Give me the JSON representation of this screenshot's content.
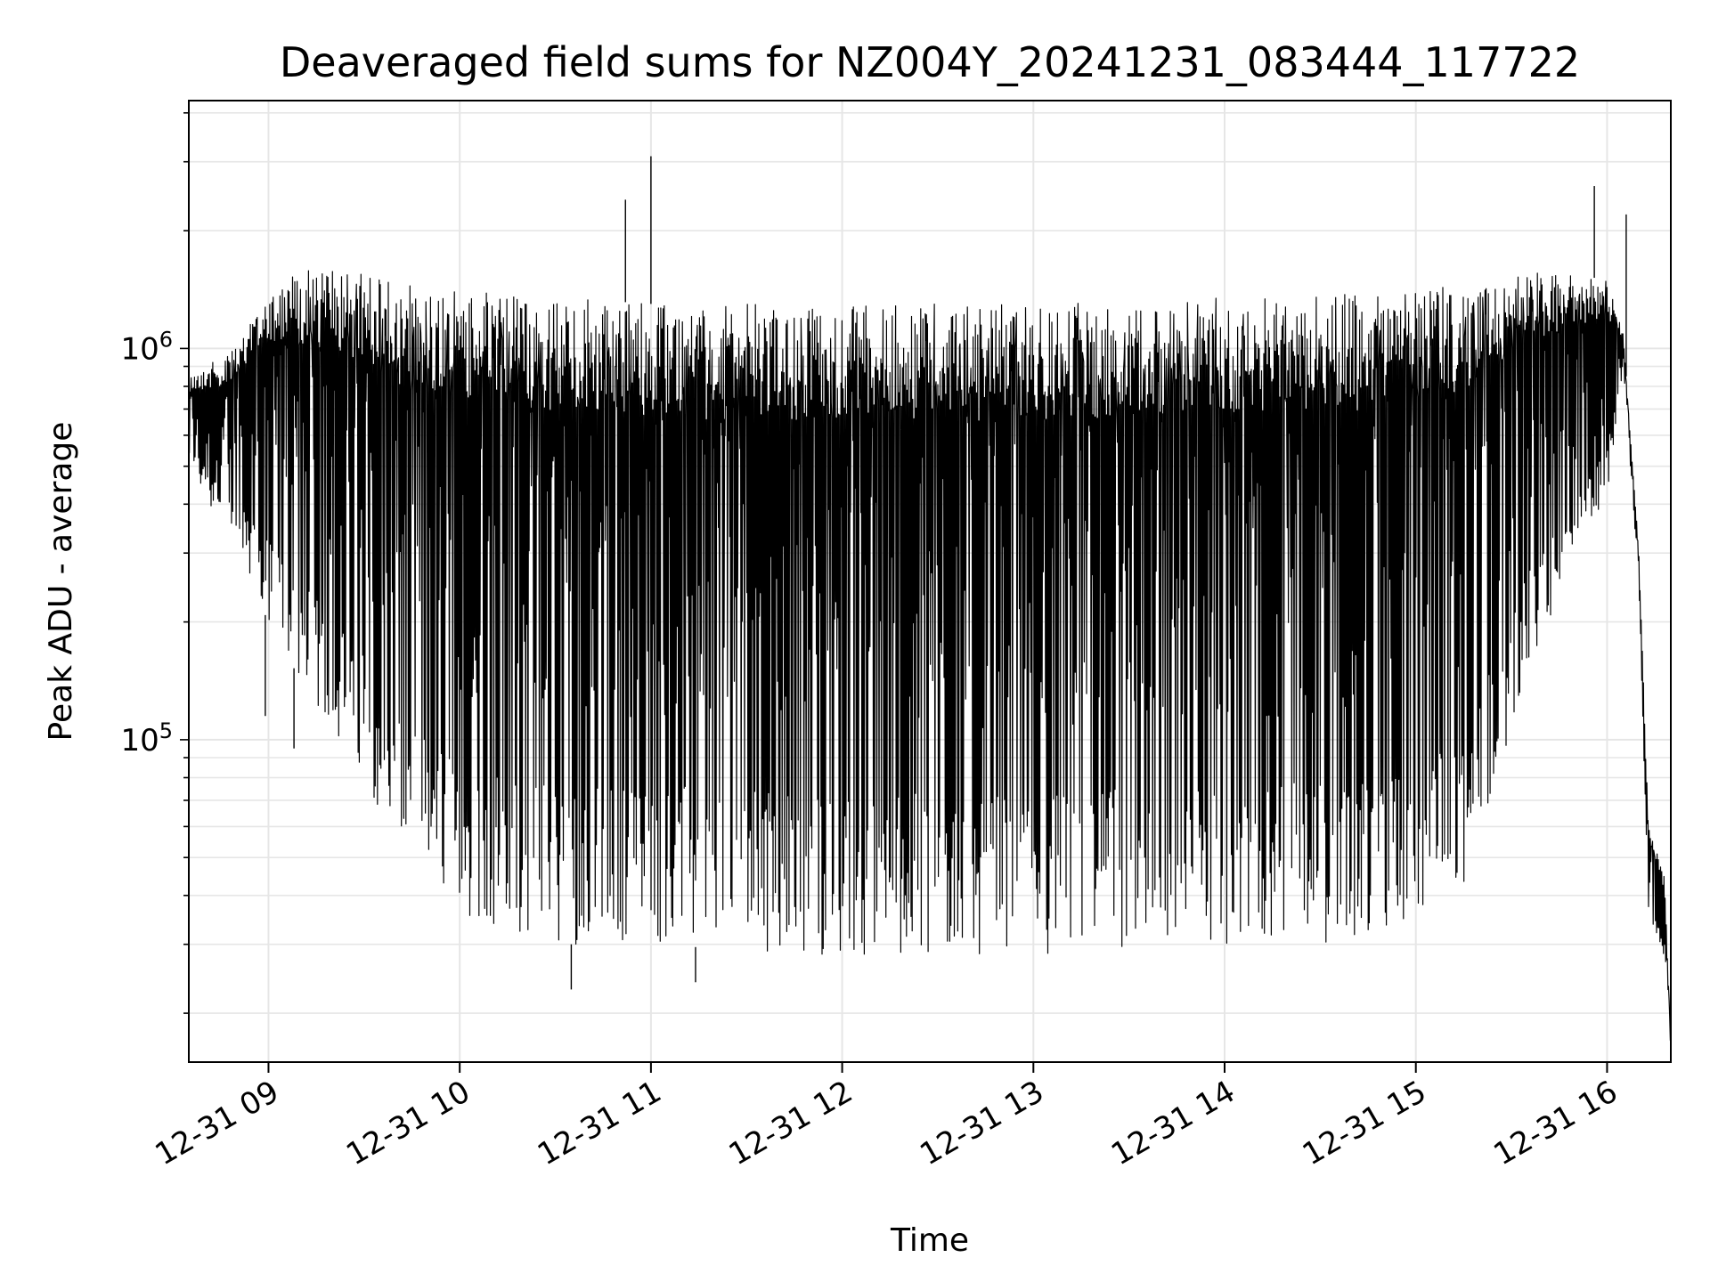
{
  "chart_data": {
    "type": "line",
    "title": "Deaveraged field sums for NZ004Y_20241231_083444_117722",
    "xlabel": "Time",
    "ylabel": "Peak ADU - average",
    "yscale": "log",
    "grid": true,
    "line_color": "#000000",
    "grid_color": "#e6e6e6",
    "xlim": [
      "2024-12-31T08:35:00",
      "2024-12-31T16:20:00"
    ],
    "ylim": [
      15000,
      4300000
    ],
    "x_tick_labels": [
      "12-31 09",
      "12-31 10",
      "12-31 11",
      "12-31 12",
      "12-31 13",
      "12-31 14",
      "12-31 15",
      "12-31 16"
    ],
    "x_ticks": [
      "2024-12-31T09:00:00",
      "2024-12-31T10:00:00",
      "2024-12-31T11:00:00",
      "2024-12-31T12:00:00",
      "2024-12-31T13:00:00",
      "2024-12-31T14:00:00",
      "2024-12-31T15:00:00",
      "2024-12-31T16:00:00"
    ],
    "y_ticks": [
      {
        "value": 100000,
        "base": "10",
        "exp": "5"
      },
      {
        "value": 1000000,
        "base": "10",
        "exp": "6"
      }
    ],
    "series_profile": [
      {
        "x": "2024-12-31T08:35:00",
        "high": 850000,
        "low": 500000
      },
      {
        "x": "2024-12-31T08:50:00",
        "high": 1000000,
        "low": 300000
      },
      {
        "x": "2024-12-31T09:00:00",
        "high": 1500000,
        "low": 200000
      },
      {
        "x": "2024-12-31T09:15:00",
        "high": 1600000,
        "low": 120000
      },
      {
        "x": "2024-12-31T09:30:00",
        "high": 1550000,
        "low": 80000
      },
      {
        "x": "2024-12-31T09:45:00",
        "high": 1450000,
        "low": 45000
      },
      {
        "x": "2024-12-31T10:00:00",
        "high": 1400000,
        "low": 35000
      },
      {
        "x": "2024-12-31T10:30:00",
        "high": 1350000,
        "low": 30000
      },
      {
        "x": "2024-12-31T11:00:00",
        "high": 1300000,
        "low": 30000
      },
      {
        "x": "2024-12-31T12:00:00",
        "high": 1300000,
        "low": 28000
      },
      {
        "x": "2024-12-31T13:00:00",
        "high": 1300000,
        "low": 28000
      },
      {
        "x": "2024-12-31T14:00:00",
        "high": 1350000,
        "low": 30000
      },
      {
        "x": "2024-12-31T14:45:00",
        "high": 1380000,
        "low": 30000
      },
      {
        "x": "2024-12-31T15:15:00",
        "high": 1450000,
        "low": 40000
      },
      {
        "x": "2024-12-31T15:35:00",
        "high": 1600000,
        "low": 150000
      },
      {
        "x": "2024-12-31T16:00:00",
        "high": 1500000,
        "low": 400000
      },
      {
        "x": "2024-12-31T16:05:00",
        "high": 1100000,
        "low": 900000
      },
      {
        "x": "2024-12-31T16:10:00",
        "high": 300000,
        "low": 250000
      },
      {
        "x": "2024-12-31T16:13:00",
        "high": 60000,
        "low": 35000
      },
      {
        "x": "2024-12-31T16:18:00",
        "high": 45000,
        "low": 28000
      },
      {
        "x": "2024-12-31T16:20:00",
        "high": 17000,
        "low": 15000
      }
    ],
    "spikes": [
      {
        "x": "2024-12-31T10:52:00",
        "y": 2400000
      },
      {
        "x": "2024-12-31T11:00:00",
        "y": 3100000
      },
      {
        "x": "2024-12-31T15:56:00",
        "y": 2600000
      },
      {
        "x": "2024-12-31T16:06:00",
        "y": 2200000
      },
      {
        "x": "2024-12-31T10:35:00",
        "y": 23000
      },
      {
        "x": "2024-12-31T11:14:00",
        "y": 24000
      },
      {
        "x": "2024-12-31T08:59:00",
        "y": 115000
      },
      {
        "x": "2024-12-31T09:08:00",
        "y": 95000
      }
    ]
  }
}
